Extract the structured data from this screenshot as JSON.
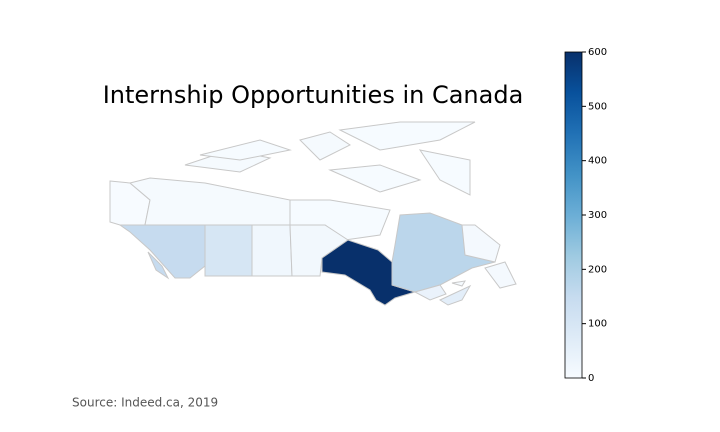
{
  "chart_data": {
    "type": "choropleth",
    "title": "Internship Opportunities in Canada",
    "source": "Source: Indeed.ca, 2019",
    "values": [
      0,
      5,
      2,
      150,
      100,
      20,
      15,
      600,
      170,
      10,
      40,
      60,
      5
    ],
    "clim": [
      0,
      600
    ],
    "cticks": [
      0,
      100,
      200,
      300,
      400,
      500,
      600
    ],
    "colormap": [
      "#f7fbff",
      "#deebf7",
      "#c6dbef",
      "#9ecae1",
      "#6baed6",
      "#4292c6",
      "#2171b5",
      "#08519c",
      "#08306b"
    ],
    "edgecolor": "#c8c8c8"
  }
}
